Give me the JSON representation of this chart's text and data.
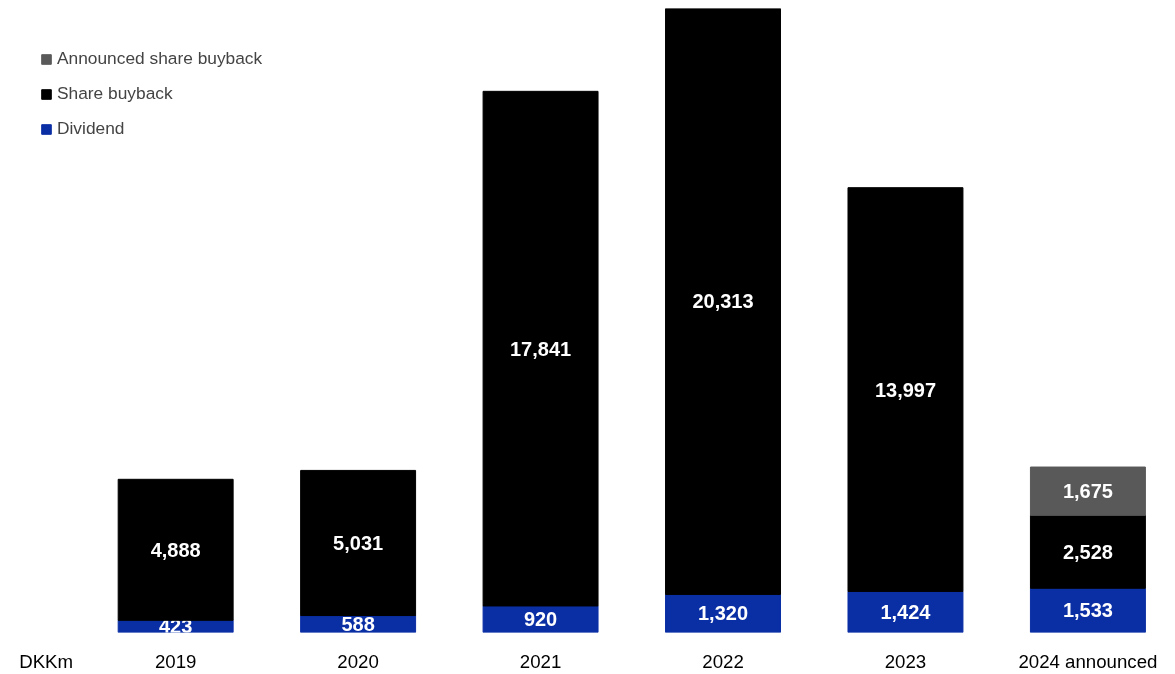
{
  "chart_data": {
    "type": "bar",
    "stacked": true,
    "legend": "top left",
    "grid": false,
    "ylabel": "DKKm",
    "categories": [
      "2019",
      "2020",
      "2021",
      "2022",
      "2023",
      "2024 announced"
    ],
    "series": [
      {
        "name": "Dividend",
        "color": "#0a2ea4",
        "values": [
          423,
          588,
          920,
          1320,
          1424,
          1533
        ],
        "value_labels": [
          "423",
          "588",
          "920",
          "1,320",
          "1,424",
          "1,533"
        ]
      },
      {
        "name": "Share buyback",
        "color": "#000000",
        "values": [
          4888,
          5031,
          17841,
          20313,
          13997,
          2528
        ],
        "value_labels": [
          "4,888",
          "5,031",
          "17,841",
          "20,313",
          "13,997",
          "2,528"
        ]
      },
      {
        "name": "Announced share buyback",
        "color": "#595959",
        "values": [
          null,
          null,
          null,
          null,
          null,
          1675
        ],
        "value_labels": [
          null,
          null,
          null,
          null,
          null,
          "1,675"
        ]
      }
    ]
  }
}
